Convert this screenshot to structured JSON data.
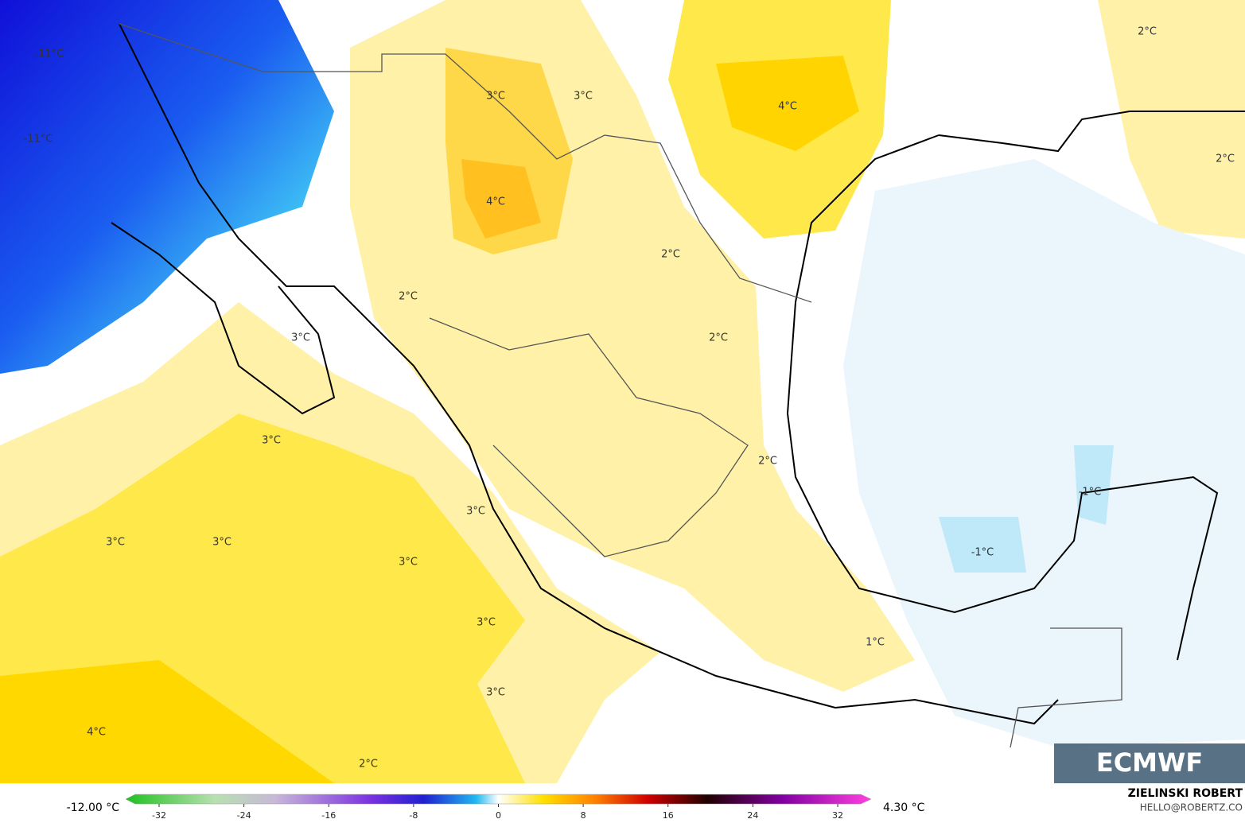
{
  "map_labels": [
    "-11°C",
    "-11°C",
    "3°C",
    "3°C",
    "4°C",
    "2°C",
    "2°C",
    "4°C",
    "2°C",
    "2°C",
    "3°C",
    "2°C",
    "3°C",
    "2°C",
    "3°C",
    "-1°C",
    "3°C",
    "3°C",
    "3°C",
    "-1°C",
    "3°C",
    "1°C",
    "3°C",
    "4°C",
    "2°C"
  ],
  "colorbar": {
    "min_label": "-12.00 °C",
    "max_label": "4.30 °C",
    "ticks": [
      -32,
      -24,
      -16,
      -8,
      0,
      8,
      16,
      24,
      32
    ]
  },
  "credits": {
    "author": "ZIELINSKI ROBERT",
    "contact": "HELLO@ROBERTZ.CO",
    "logo": "ECMWF"
  }
}
